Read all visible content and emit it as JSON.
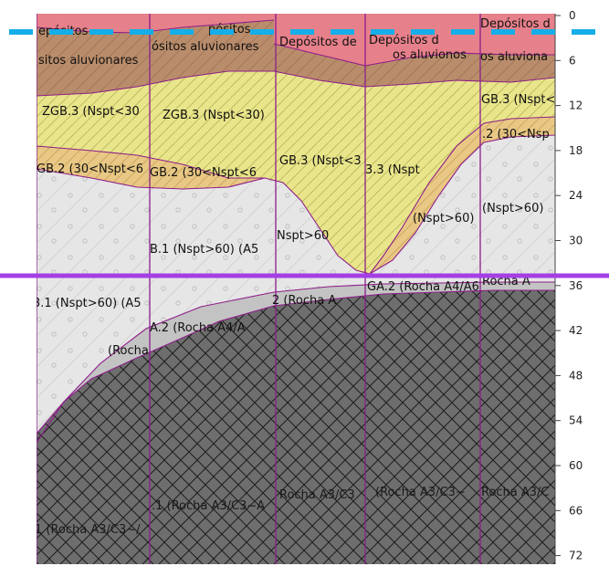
{
  "depth_axis": {
    "ticks": [
      "0",
      "6",
      "12",
      "18",
      "24",
      "30",
      "36",
      "42",
      "48",
      "54",
      "60",
      "66",
      "72"
    ]
  },
  "colors": {
    "alluvial_red": "#e6808a",
    "alluvial_brown": "#b98d6b",
    "zgb3_yellow": "#e9e58a",
    "zgb2_orange": "#e8c884",
    "zgb1_grey": "#e6e6e6",
    "zga2_grey": "#c3c3c3",
    "rock": "#6e6e6e",
    "boundary": "#8e1d8a",
    "column_line": "#8a1f8a",
    "blue_marker": "#15aee8",
    "purple_marker": "#a43fe6"
  },
  "markers": [
    {
      "name": "blue-dashed-marker"
    },
    {
      "name": "purple-solid-marker"
    }
  ],
  "labels": [
    "epósitos",
    "pósitos",
    "Depósitos de",
    "Depósitos d",
    "Depósitos d",
    "ósitos aluvionares",
    "sitos aluvionares",
    "os aluvionos",
    "os aluviona",
    "ZGB.3 (Nspt<30",
    "ZGB.3 (Nspt<30)",
    "GB.3 (Nspt<3",
    "3.3 (Nspt",
    "GB.3 (Nspt<",
    "GB.2 (30<Nspt<6",
    "GB.2 (30<Nspt<6",
    ".2 (30<Nsp",
    "(Nspt>60)",
    "(Nspt>60)",
    "Nspt>60",
    "B.1 (Nspt>60) (A5",
    "3.1 (Nspt>60) (A5",
    "GA.2 (Rocha A4/A6",
    "Rocha A",
    "2 (Rocha A",
    "A.2 (Rocha A4/A",
    "(Rocha",
    "Rocha A3/C3",
    "(Rocha A3/C3~",
    "Rocha A3/C",
    ".1 (Rocha A3/C3~A",
    "1 (Rocha A3/C3~/"
  ]
}
